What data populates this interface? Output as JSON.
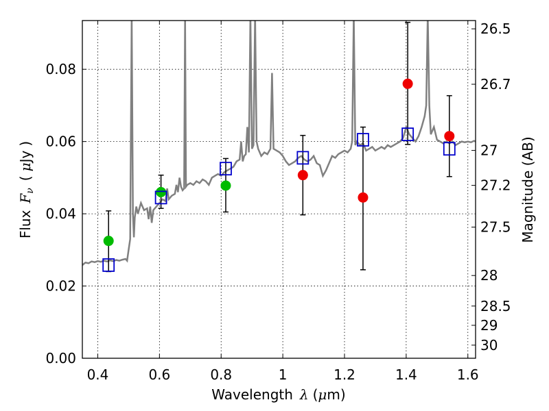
{
  "chart_data": {
    "type": "scatter",
    "xlabel": {
      "prefix": "Wavelength",
      "symbol": "λ",
      "unit_open": "(",
      "unit_mu": "μ",
      "unit_rest": "m)"
    },
    "ylabel": {
      "prefix": "Flux",
      "symbol": "F",
      "subscript": "ν",
      "unit_open": "(",
      "unit_mu": "μ",
      "unit_rest": "Jy",
      "unit_close": ")"
    },
    "y2label": "Magnitude (AB)",
    "xlim": [
      0.35,
      1.625
    ],
    "ylim": [
      0.0,
      0.0935
    ],
    "grid": true,
    "x_ticks": [
      {
        "value": 0.4,
        "label": "0.4"
      },
      {
        "value": 0.6,
        "label": "0.6"
      },
      {
        "value": 0.8,
        "label": "0.8"
      },
      {
        "value": 1.0,
        "label": "1"
      },
      {
        "value": 1.2,
        "label": "1.2"
      },
      {
        "value": 1.4,
        "label": "1.4"
      },
      {
        "value": 1.6,
        "label": "1.6"
      }
    ],
    "y_ticks": [
      {
        "value": 0.0,
        "label": "0.00"
      },
      {
        "value": 0.02,
        "label": "0.02"
      },
      {
        "value": 0.04,
        "label": "0.04"
      },
      {
        "value": 0.06,
        "label": "0.06"
      },
      {
        "value": 0.08,
        "label": "0.08"
      }
    ],
    "magnitude_ticks": [
      {
        "value": 26.5,
        "label": "26.5"
      },
      {
        "value": 26.7,
        "label": "26.7"
      },
      {
        "value": 27.0,
        "label": "27"
      },
      {
        "value": 27.2,
        "label": "27.2"
      },
      {
        "value": 27.5,
        "label": "27.5"
      },
      {
        "value": 28.0,
        "label": "28"
      },
      {
        "value": 28.5,
        "label": "28.5"
      },
      {
        "value": 29.0,
        "label": "29"
      },
      {
        "value": 30.0,
        "label": "30"
      }
    ],
    "series": [
      {
        "kind": "line",
        "color": "#808080",
        "points": [
          [
            0.35,
            0.0258
          ],
          [
            0.36,
            0.0265
          ],
          [
            0.37,
            0.0263
          ],
          [
            0.38,
            0.0268
          ],
          [
            0.39,
            0.0266
          ],
          [
            0.4,
            0.0269
          ],
          [
            0.41,
            0.0267
          ],
          [
            0.42,
            0.027
          ],
          [
            0.43,
            0.0268
          ],
          [
            0.44,
            0.0271
          ],
          [
            0.45,
            0.0269
          ],
          [
            0.46,
            0.0272
          ],
          [
            0.47,
            0.027
          ],
          [
            0.48,
            0.0273
          ],
          [
            0.49,
            0.0275
          ],
          [
            0.495,
            0.027
          ],
          [
            0.5,
            0.03
          ],
          [
            0.505,
            0.033
          ],
          [
            0.51,
            0.095
          ],
          [
            0.514,
            0.04
          ],
          [
            0.517,
            0.0335
          ],
          [
            0.52,
            0.039
          ],
          [
            0.525,
            0.042
          ],
          [
            0.53,
            0.04
          ],
          [
            0.54,
            0.043
          ],
          [
            0.55,
            0.041
          ],
          [
            0.56,
            0.0415
          ],
          [
            0.565,
            0.0385
          ],
          [
            0.57,
            0.042
          ],
          [
            0.575,
            0.0375
          ],
          [
            0.58,
            0.041
          ],
          [
            0.59,
            0.042
          ],
          [
            0.6,
            0.043
          ],
          [
            0.61,
            0.044
          ],
          [
            0.62,
            0.0435
          ],
          [
            0.625,
            0.047
          ],
          [
            0.63,
            0.044
          ],
          [
            0.64,
            0.045
          ],
          [
            0.65,
            0.0455
          ],
          [
            0.655,
            0.048
          ],
          [
            0.66,
            0.046
          ],
          [
            0.665,
            0.05
          ],
          [
            0.67,
            0.0475
          ],
          [
            0.675,
            0.0465
          ],
          [
            0.68,
            0.047
          ],
          [
            0.683,
            0.095
          ],
          [
            0.686,
            0.0475
          ],
          [
            0.69,
            0.048
          ],
          [
            0.7,
            0.0485
          ],
          [
            0.71,
            0.048
          ],
          [
            0.72,
            0.049
          ],
          [
            0.73,
            0.0485
          ],
          [
            0.74,
            0.0495
          ],
          [
            0.75,
            0.049
          ],
          [
            0.76,
            0.048
          ],
          [
            0.77,
            0.05
          ],
          [
            0.78,
            0.0505
          ],
          [
            0.79,
            0.051
          ],
          [
            0.8,
            0.0505
          ],
          [
            0.81,
            0.0515
          ],
          [
            0.82,
            0.052
          ],
          [
            0.83,
            0.0525
          ],
          [
            0.84,
            0.053
          ],
          [
            0.85,
            0.0545
          ],
          [
            0.86,
            0.055
          ],
          [
            0.865,
            0.06
          ],
          [
            0.87,
            0.0545
          ],
          [
            0.875,
            0.056
          ],
          [
            0.88,
            0.0565
          ],
          [
            0.885,
            0.064
          ],
          [
            0.89,
            0.057
          ],
          [
            0.895,
            0.095
          ],
          [
            0.9,
            0.058
          ],
          [
            0.905,
            0.059
          ],
          [
            0.91,
            0.095
          ],
          [
            0.915,
            0.06
          ],
          [
            0.92,
            0.058
          ],
          [
            0.93,
            0.056
          ],
          [
            0.94,
            0.057
          ],
          [
            0.95,
            0.0565
          ],
          [
            0.96,
            0.058
          ],
          [
            0.965,
            0.079
          ],
          [
            0.97,
            0.058
          ],
          [
            0.98,
            0.0575
          ],
          [
            0.99,
            0.057
          ],
          [
            1.0,
            0.056
          ],
          [
            1.01,
            0.0545
          ],
          [
            1.02,
            0.0535
          ],
          [
            1.03,
            0.054
          ],
          [
            1.04,
            0.0545
          ],
          [
            1.05,
            0.0555
          ],
          [
            1.06,
            0.056
          ],
          [
            1.07,
            0.055
          ],
          [
            1.08,
            0.0545
          ],
          [
            1.09,
            0.055
          ],
          [
            1.1,
            0.056
          ],
          [
            1.11,
            0.054
          ],
          [
            1.12,
            0.0535
          ],
          [
            1.13,
            0.0505
          ],
          [
            1.14,
            0.052
          ],
          [
            1.15,
            0.054
          ],
          [
            1.16,
            0.056
          ],
          [
            1.17,
            0.0555
          ],
          [
            1.18,
            0.0565
          ],
          [
            1.19,
            0.057
          ],
          [
            1.2,
            0.0575
          ],
          [
            1.21,
            0.057
          ],
          [
            1.22,
            0.058
          ],
          [
            1.225,
            0.06
          ],
          [
            1.23,
            0.095
          ],
          [
            1.235,
            0.059
          ],
          [
            1.24,
            0.06
          ],
          [
            1.25,
            0.059
          ],
          [
            1.26,
            0.0595
          ],
          [
            1.27,
            0.0575
          ],
          [
            1.28,
            0.058
          ],
          [
            1.29,
            0.0585
          ],
          [
            1.3,
            0.0575
          ],
          [
            1.31,
            0.058
          ],
          [
            1.32,
            0.0585
          ],
          [
            1.33,
            0.058
          ],
          [
            1.34,
            0.059
          ],
          [
            1.35,
            0.0585
          ],
          [
            1.36,
            0.059
          ],
          [
            1.37,
            0.0595
          ],
          [
            1.38,
            0.06
          ],
          [
            1.39,
            0.061
          ],
          [
            1.4,
            0.064
          ],
          [
            1.41,
            0.062
          ],
          [
            1.42,
            0.061
          ],
          [
            1.43,
            0.06
          ],
          [
            1.44,
            0.0615
          ],
          [
            1.45,
            0.064
          ],
          [
            1.46,
            0.067
          ],
          [
            1.465,
            0.07
          ],
          [
            1.47,
            0.095
          ],
          [
            1.475,
            0.07
          ],
          [
            1.48,
            0.062
          ],
          [
            1.49,
            0.064
          ],
          [
            1.5,
            0.0605
          ],
          [
            1.51,
            0.06
          ],
          [
            1.52,
            0.0595
          ],
          [
            1.53,
            0.06
          ],
          [
            1.54,
            0.0595
          ],
          [
            1.55,
            0.06
          ],
          [
            1.56,
            0.059
          ],
          [
            1.57,
            0.0595
          ],
          [
            1.58,
            0.06
          ],
          [
            1.59,
            0.0598
          ],
          [
            1.6,
            0.06
          ],
          [
            1.61,
            0.0598
          ],
          [
            1.62,
            0.0602
          ],
          [
            1.625,
            0.06
          ]
        ]
      },
      {
        "kind": "open-square",
        "color": "#0000cc",
        "points": [
          [
            0.435,
            0.0258
          ],
          [
            0.605,
            0.0445
          ],
          [
            0.815,
            0.0525
          ],
          [
            1.065,
            0.0555
          ],
          [
            1.26,
            0.0605
          ],
          [
            1.405,
            0.062
          ],
          [
            1.54,
            0.058
          ]
        ]
      },
      {
        "kind": "filled-circle",
        "color": "#00bb00",
        "points": [
          {
            "x": 0.435,
            "y": 0.0325,
            "err_lo": 0.024,
            "err_hi": 0.0408
          },
          {
            "x": 0.605,
            "y": 0.046,
            "err_lo": 0.0415,
            "err_hi": 0.0507
          },
          {
            "x": 0.815,
            "y": 0.0478,
            "err_lo": 0.0405,
            "err_hi": 0.0553
          }
        ]
      },
      {
        "kind": "filled-circle",
        "color": "#ee0000",
        "points": [
          {
            "x": 1.065,
            "y": 0.0507,
            "err_lo": 0.0397,
            "err_hi": 0.0617
          },
          {
            "x": 1.26,
            "y": 0.0445,
            "err_lo": 0.0245,
            "err_hi": 0.064
          },
          {
            "x": 1.405,
            "y": 0.076,
            "err_lo": 0.0592,
            "err_hi": 0.093
          },
          {
            "x": 1.54,
            "y": 0.0615,
            "err_lo": 0.0503,
            "err_hi": 0.0727
          }
        ]
      }
    ]
  }
}
